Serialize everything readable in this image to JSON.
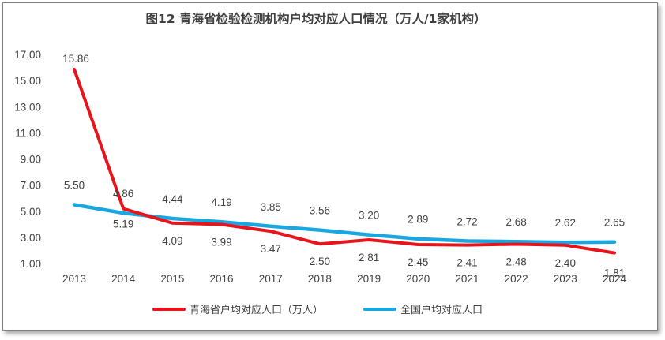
{
  "chart_data": {
    "type": "line",
    "title": "图12  青海省检验检测机构户均对应人口情况（万人/1家机构）",
    "categories": [
      "2013",
      "2014",
      "2015",
      "2016",
      "2017",
      "2018",
      "2019",
      "2020",
      "2021",
      "2022",
      "2023",
      "2024"
    ],
    "yticks": [
      "1.00",
      "3.00",
      "5.00",
      "7.00",
      "9.00",
      "11.00",
      "13.00",
      "15.00",
      "17.00"
    ],
    "ylim": [
      1,
      17
    ],
    "grid": false,
    "legend_position": "bottom",
    "series": [
      {
        "name": "青海省户均对应人口（万人）",
        "color": "#e8141c",
        "values": [
          15.86,
          5.19,
          4.09,
          3.99,
          3.47,
          2.5,
          2.81,
          2.45,
          2.41,
          2.48,
          2.4,
          1.81
        ],
        "labels": [
          "15.86",
          "5.19",
          "4.09",
          "3.99",
          "3.47",
          "2.50",
          "2.81",
          "2.45",
          "2.41",
          "2.48",
          "2.40",
          "1.81"
        ]
      },
      {
        "name": "全国户均对应人口",
        "color": "#1aa7e0",
        "values": [
          5.5,
          4.86,
          4.44,
          4.19,
          3.85,
          3.56,
          3.2,
          2.89,
          2.72,
          2.68,
          2.62,
          2.65
        ],
        "labels": [
          "5.50",
          "4.86",
          "4.44",
          "4.19",
          "3.85",
          "3.56",
          "3.20",
          "2.89",
          "2.72",
          "2.68",
          "2.62",
          "2.65"
        ]
      }
    ]
  }
}
